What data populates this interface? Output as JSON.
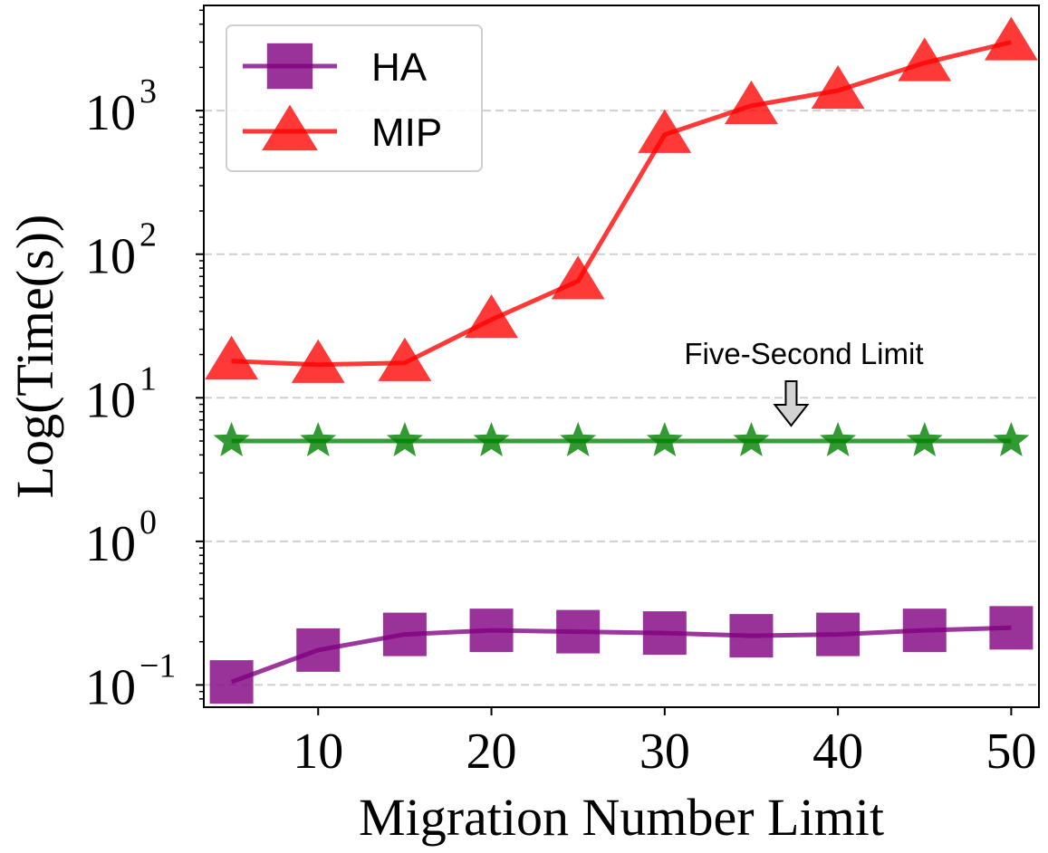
{
  "chart_data": {
    "type": "line",
    "title": "",
    "xlabel": "Migration Number Limit",
    "ylabel": "Log(Time(s))",
    "xlim": [
      3.4,
      51.6
    ],
    "ylim": [
      0.07,
      5400
    ],
    "yscale": "log",
    "x_ticks": [
      10,
      20,
      30,
      40,
      50
    ],
    "y_ticks": [
      {
        "value": 0.1,
        "base": "10",
        "exp": "−1"
      },
      {
        "value": 1,
        "base": "10",
        "exp": "0"
      },
      {
        "value": 10,
        "base": "10",
        "exp": "1"
      },
      {
        "value": 100,
        "base": "10",
        "exp": "2"
      },
      {
        "value": 1000,
        "base": "10",
        "exp": "3"
      }
    ],
    "grid": "y-dashed",
    "legend_position": "top-left",
    "x": [
      5,
      10,
      15,
      20,
      25,
      30,
      35,
      40,
      45,
      50
    ],
    "series": [
      {
        "name": "HA",
        "marker": "square",
        "color": "#800080",
        "values": [
          0.105,
          0.175,
          0.225,
          0.24,
          0.235,
          0.23,
          0.22,
          0.225,
          0.24,
          0.25
        ]
      },
      {
        "name": "MIP",
        "marker": "triangle",
        "color": "#ff0000",
        "values": [
          18,
          17,
          17.5,
          35,
          65,
          680,
          1080,
          1380,
          2150,
          3000
        ]
      },
      {
        "name": "",
        "marker": "star",
        "color": "#008000",
        "in_legend": false,
        "values": [
          5,
          5,
          5,
          5,
          5,
          5,
          5,
          5,
          5,
          5
        ]
      }
    ],
    "annotations": [
      {
        "text": "Five-Second Limit",
        "x": 37.3,
        "y": 5,
        "arrow": "down"
      }
    ]
  }
}
